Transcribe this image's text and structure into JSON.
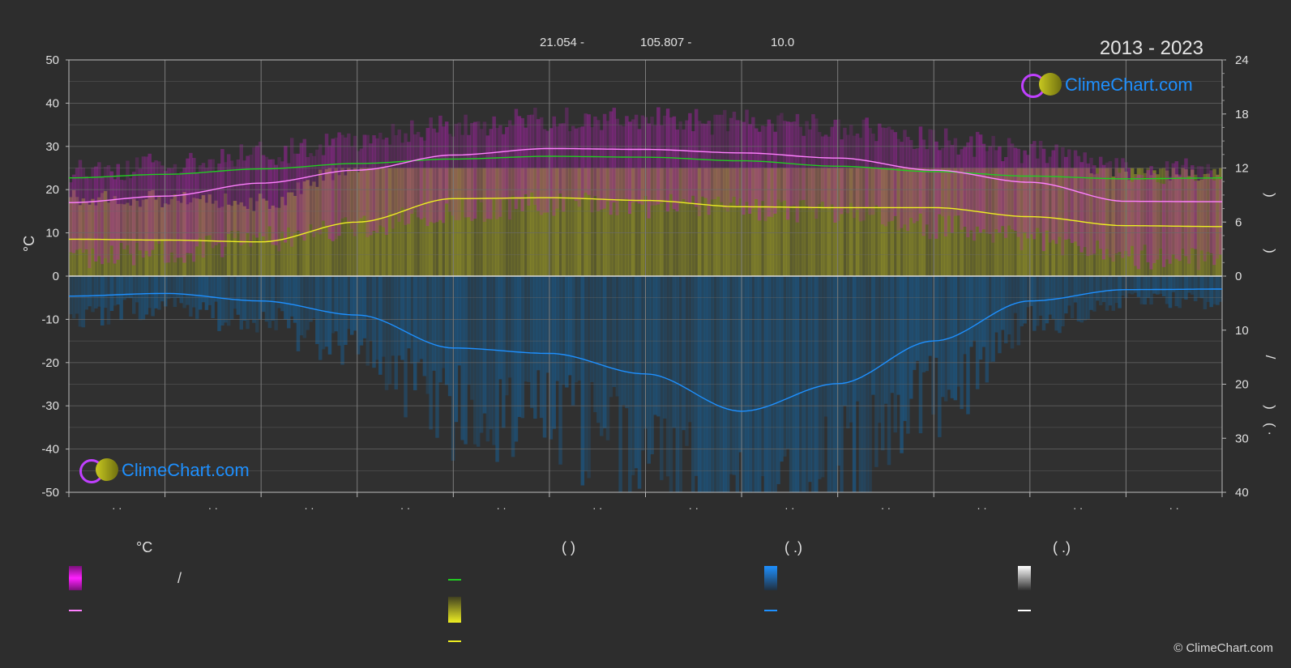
{
  "header": {
    "lat": "21.054 -",
    "lon": "105.807 -",
    "elev": "10.0",
    "years": "2013 - 2023"
  },
  "chart_data": {
    "type": "area",
    "x_daily_count": 365,
    "left_axis": {
      "label": "°C",
      "ylim": [
        -50,
        50
      ],
      "ticks": [
        50,
        40,
        30,
        20,
        10,
        0,
        -10,
        -20,
        -30,
        -40,
        -50
      ]
    },
    "right_axis_top": {
      "ylim": [
        0,
        24
      ],
      "ticks": [
        24,
        18,
        12,
        6,
        0
      ]
    },
    "right_axis_bottom": {
      "ylim": [
        0,
        40
      ],
      "ticks": [
        0,
        10,
        20,
        30,
        40
      ]
    },
    "month_labels": [
      "· ·",
      "· ·",
      "· ·",
      "· ·",
      "· ·",
      "· ·",
      "· ·",
      "· ·",
      "· ·",
      "· ·",
      "· ·",
      "· ·"
    ],
    "series": [
      {
        "name": "daylight",
        "color": "#22cc22",
        "axis": "right_top",
        "points": [
          [
            0,
            10.9
          ],
          [
            1,
            11.3
          ],
          [
            2,
            11.9
          ],
          [
            3,
            12.5
          ],
          [
            4,
            13.0
          ],
          [
            5,
            13.3
          ],
          [
            6,
            13.2
          ],
          [
            7,
            12.8
          ],
          [
            8,
            12.2
          ],
          [
            9,
            11.6
          ],
          [
            10,
            11.1
          ],
          [
            11,
            10.8
          ],
          [
            12,
            10.9
          ]
        ]
      },
      {
        "name": "temp_mean_max",
        "color": "#ff80ff",
        "axis": "left",
        "points": [
          [
            0,
            17.0
          ],
          [
            1,
            18.5
          ],
          [
            2,
            21.5
          ],
          [
            3,
            24.5
          ],
          [
            4,
            28.0
          ],
          [
            5,
            29.5
          ],
          [
            6,
            29.3
          ],
          [
            7,
            28.5
          ],
          [
            8,
            27.3
          ],
          [
            9,
            24.5
          ],
          [
            10,
            21.7
          ],
          [
            11,
            17.3
          ],
          [
            12,
            17.2
          ]
        ]
      },
      {
        "name": "sunshine",
        "color": "#eeee22",
        "axis": "right_top",
        "points": [
          [
            0,
            4.1
          ],
          [
            1,
            4.0
          ],
          [
            2,
            3.8
          ],
          [
            3,
            6.0
          ],
          [
            4,
            8.6
          ],
          [
            5,
            8.7
          ],
          [
            6,
            8.4
          ],
          [
            7,
            7.7
          ],
          [
            8,
            7.6
          ],
          [
            9,
            7.6
          ],
          [
            10,
            6.6
          ],
          [
            11,
            5.6
          ],
          [
            12,
            5.5
          ]
        ]
      },
      {
        "name": "precipitation",
        "color": "#1e90ff",
        "axis": "right_bottom",
        "points": [
          [
            0,
            3.7
          ],
          [
            1,
            3.2
          ],
          [
            2,
            4.6
          ],
          [
            3,
            7.2
          ],
          [
            4,
            13.3
          ],
          [
            5,
            14.3
          ],
          [
            6,
            18.1
          ],
          [
            7,
            25.0
          ],
          [
            8,
            19.9
          ],
          [
            9,
            12.0
          ],
          [
            10,
            4.6
          ],
          [
            11,
            2.5
          ],
          [
            12,
            2.4
          ]
        ]
      }
    ]
  },
  "legend": {
    "col1_head": "°C",
    "col1_item1_sep": "/",
    "col2_head": "(          )",
    "col3_head": "(   .)",
    "col4_head": "(   .)"
  },
  "right_axis_glyphs": {
    "a": ")",
    "b": ")",
    "c": "/",
    "d": ")",
    "e": "(  ·"
  },
  "logos": {
    "text": "ClimeChart.com"
  },
  "copyright": "© ClimeChart.com",
  "colors": {
    "bg": "#2d2d2d",
    "plot_bg": "#303030",
    "grid": "#5a5a5a",
    "magenta": "#e020e0",
    "yellow": "#eeee22",
    "blue": "#1e90ff",
    "green": "#22cc22"
  }
}
